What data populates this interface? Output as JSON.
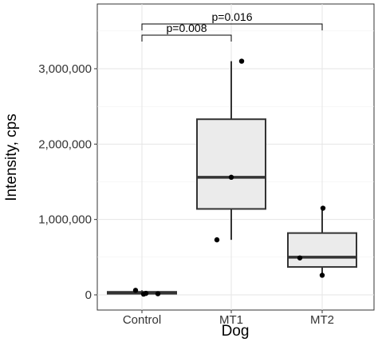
{
  "chart_data": {
    "type": "box",
    "xlabel": "Dog",
    "ylabel": "Intensity, cps",
    "ylim": [
      -100000,
      3600000
    ],
    "y_ticks": [
      0,
      1000000,
      2000000,
      3000000
    ],
    "y_tick_labels": [
      "0",
      "1,000,000",
      "2,000,000",
      "3,000,000"
    ],
    "grid": true,
    "categories": [
      "Control",
      "MT1",
      "MT2"
    ],
    "boxes": [
      {
        "category": "Control",
        "min": 10000,
        "q1": 15000,
        "median": 25000,
        "q3": 40000,
        "max": 60000,
        "points": [
          60000,
          20000,
          15000,
          10000
        ]
      },
      {
        "category": "MT1",
        "min": 730000,
        "q1": 1140000,
        "median": 1560000,
        "q3": 2330000,
        "max": 3100000,
        "points": [
          3100000,
          1560000,
          730000
        ]
      },
      {
        "category": "MT2",
        "min": 260000,
        "q1": 370000,
        "median": 500000,
        "q3": 820000,
        "max": 1140000,
        "points": [
          1150000,
          490000,
          260000
        ]
      }
    ],
    "annotations": [
      {
        "from": "Control",
        "to": "MT1",
        "label": "p=0.008"
      },
      {
        "from": "Control",
        "to": "MT2",
        "label": "p=0.016"
      }
    ],
    "colors": {
      "box_fill": "#ebebeb",
      "box_stroke": "#333333",
      "point": "#000000",
      "grid": "#e5e5e5"
    }
  }
}
